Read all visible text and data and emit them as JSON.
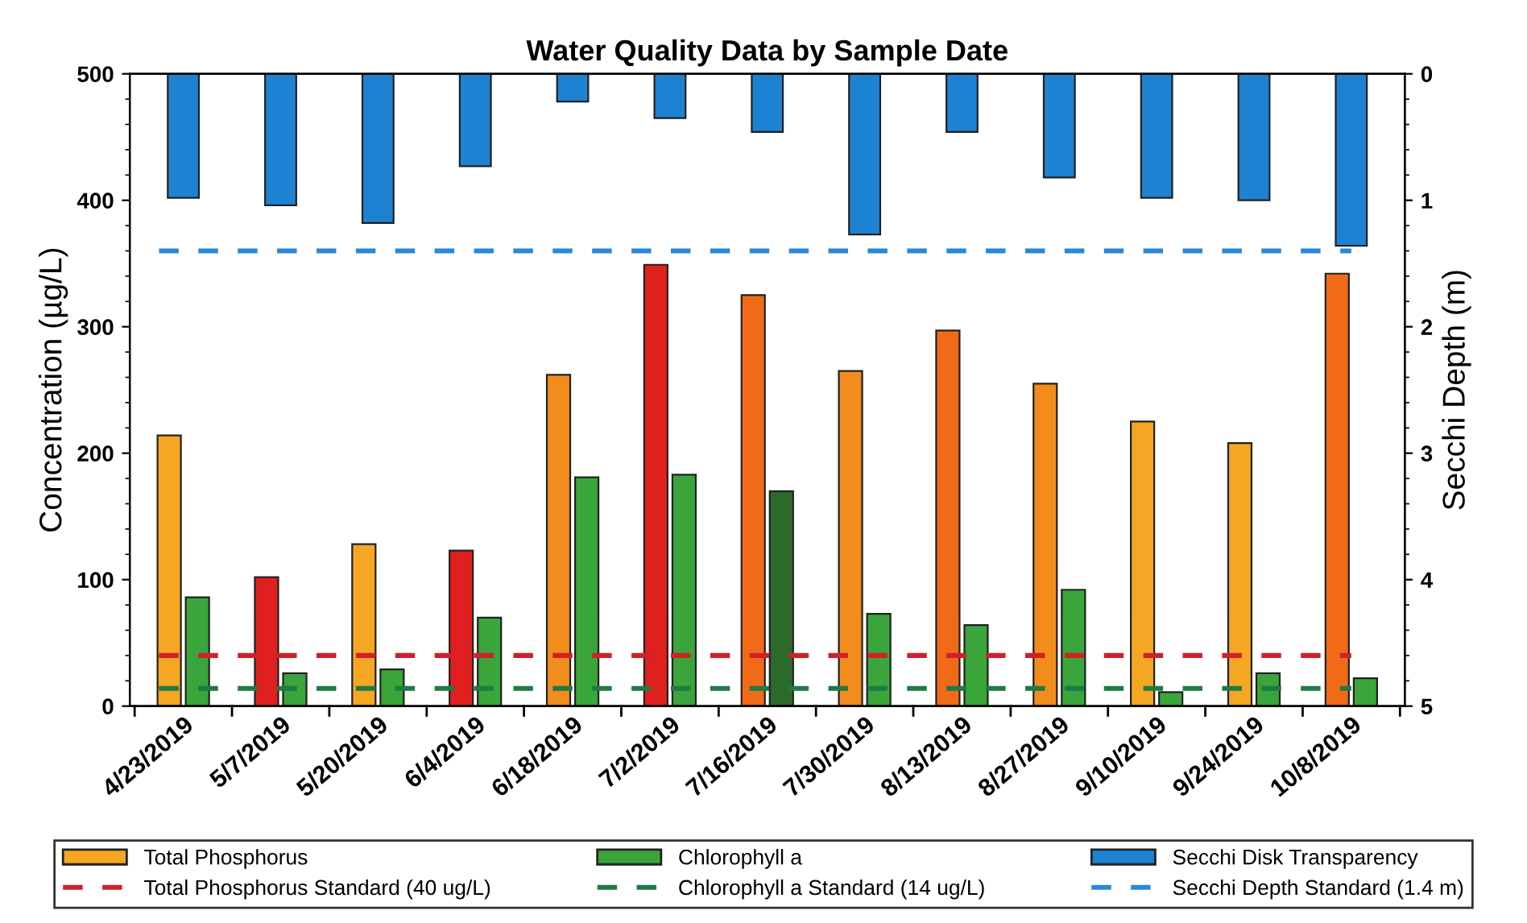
{
  "chart_data": {
    "type": "bar",
    "title": "Water Quality Data by Sample Date",
    "categories": [
      "4/23/2019",
      "5/7/2019",
      "5/20/2019",
      "6/4/2019",
      "6/18/2019",
      "7/2/2019",
      "7/16/2019",
      "7/30/2019",
      "8/13/2019",
      "8/27/2019",
      "9/10/2019",
      "9/24/2019",
      "10/8/2019"
    ],
    "series": [
      {
        "name": "Total Phosphorus",
        "color": "#f5a623",
        "colors": [
          "#f5a623",
          "#e0201e",
          "#f5a623",
          "#e0201e",
          "#f28c1c",
          "#e0201e",
          "#f06a18",
          "#f28c1c",
          "#f06a18",
          "#f28c1c",
          "#f5a623",
          "#f5a623",
          "#f06a18"
        ],
        "values": [
          214,
          102,
          128,
          123,
          262,
          349,
          325,
          265,
          297,
          255,
          225,
          208,
          342
        ]
      },
      {
        "name": "Chlorophyll a",
        "color": "#3aa53a",
        "colors": [
          "#3aa53a",
          "#3aa53a",
          "#3aa53a",
          "#3aa53a",
          "#3aa53a",
          "#3aa53a",
          "#2b6a2b",
          "#3aa53a",
          "#3aa53a",
          "#3aa53a",
          "#3aa53a",
          "#3aa53a",
          "#3aa53a"
        ],
        "values": [
          86,
          26,
          29,
          70,
          181,
          183,
          170,
          73,
          64,
          92,
          11,
          26,
          22
        ]
      },
      {
        "name": "Secchi Disk Transparency",
        "color": "#1e82d2",
        "axis": "y2",
        "values": [
          0.98,
          1.04,
          1.18,
          0.73,
          0.22,
          0.35,
          0.46,
          1.27,
          0.46,
          0.82,
          0.98,
          1.0,
          1.36
        ]
      }
    ],
    "ylabel": "Concentration (µg/L)",
    "y2label": "Secchi Depth (m)",
    "ylim": [
      0,
      500
    ],
    "yticks": [
      0,
      100,
      200,
      300,
      400,
      500
    ],
    "y2lim": [
      5,
      0
    ],
    "y2ticks": [
      0,
      1,
      2,
      3,
      4,
      5
    ],
    "ref_lines": [
      {
        "axis": "y",
        "value": 40,
        "label": "Total Phosphorus Standard (40 ug/L)",
        "color": "#d0202a",
        "line_style": "dashed"
      },
      {
        "axis": "y",
        "value": 14,
        "label": "Chlorophyll a Standard (14 ug/L)",
        "color": "#1f7a45",
        "line_style": "dashed"
      },
      {
        "axis": "y2",
        "value": 1.4,
        "label": "Secchi Depth Standard (1.4 m)",
        "color": "#2a88d8",
        "line_style": "dashed"
      }
    ],
    "legend": "bottom",
    "grid": false
  }
}
